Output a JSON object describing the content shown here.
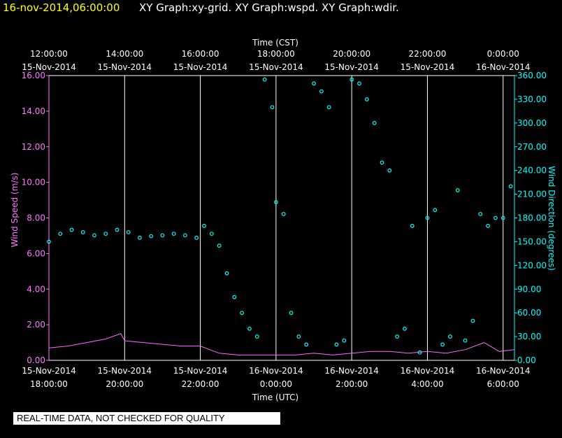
{
  "header": {
    "timestamp": "16-nov-2014,06:00:00",
    "graphs": "XY Graph:xy-grid.  XY Graph:wspd.  XY Graph:wdir.",
    "timestamp_color": "#ffff00",
    "graphs_color": "#ffffff"
  },
  "footer": {
    "qc_notice": "REAL-TIME DATA, NOT CHECKED FOR QUALITY"
  },
  "chart_data": {
    "type": "line+scatter",
    "title": "16-nov-2014,06:00:00",
    "top_axis_title": "Time (CST)",
    "bottom_axis_title": "Time (UTC)",
    "left_axis_title": "Wind Speed (m/s)",
    "right_axis_title": "Wind Direction (degrees)",
    "x_range_utc_hours": [
      18,
      30.3
    ],
    "top_ticks": [
      {
        "hour": 18,
        "time": "12:00:00",
        "date": "15-Nov-2014"
      },
      {
        "hour": 20,
        "time": "14:00:00",
        "date": "15-Nov-2014"
      },
      {
        "hour": 22,
        "time": "16:00:00",
        "date": "15-Nov-2014"
      },
      {
        "hour": 24,
        "time": "18:00:00",
        "date": "15-Nov-2014"
      },
      {
        "hour": 26,
        "time": "20:00:00",
        "date": "15-Nov-2014"
      },
      {
        "hour": 28,
        "time": "22:00:00",
        "date": "15-Nov-2014"
      },
      {
        "hour": 30,
        "time": "0:00:00",
        "date": "16-Nov-2014"
      }
    ],
    "bottom_ticks": [
      {
        "hour": 18,
        "date": "15-Nov-2014",
        "time": "18:00:00"
      },
      {
        "hour": 20,
        "date": "15-Nov-2014",
        "time": "20:00:00"
      },
      {
        "hour": 22,
        "date": "15-Nov-2014",
        "time": "22:00:00"
      },
      {
        "hour": 24,
        "date": "16-Nov-2014",
        "time": "0:00:00"
      },
      {
        "hour": 26,
        "date": "16-Nov-2014",
        "time": "2:00:00"
      },
      {
        "hour": 28,
        "date": "16-Nov-2014",
        "time": "4:00:00"
      },
      {
        "hour": 30,
        "date": "16-Nov-2014",
        "time": "6:00:00"
      }
    ],
    "y_left": {
      "range": [
        0,
        16
      ],
      "ticks": [
        "0.00",
        "2.00",
        "4.00",
        "6.00",
        "8.00",
        "10.00",
        "12.00",
        "14.00",
        "16.00"
      ]
    },
    "y_right": {
      "range": [
        0,
        360
      ],
      "ticks": [
        "0.00",
        "30.00",
        "60.00",
        "90.00",
        "120.00",
        "150.00",
        "180.00",
        "210.00",
        "240.00",
        "270.00",
        "300.00",
        "330.00",
        "360.00"
      ]
    },
    "series": [
      {
        "name": "Wind Speed",
        "axis": "left",
        "style": "line",
        "color": "#ff66ff",
        "x": [
          18.0,
          18.5,
          19.0,
          19.5,
          19.9,
          20.0,
          20.5,
          21.0,
          21.5,
          22.0,
          22.5,
          23.0,
          23.5,
          24.0,
          24.5,
          25.0,
          25.5,
          26.0,
          26.5,
          27.0,
          27.5,
          28.0,
          28.5,
          29.0,
          29.5,
          29.9,
          30.3
        ],
        "values": [
          0.7,
          0.8,
          1.0,
          1.2,
          1.5,
          1.1,
          1.0,
          0.9,
          0.8,
          0.8,
          0.4,
          0.3,
          0.3,
          0.3,
          0.3,
          0.4,
          0.3,
          0.4,
          0.5,
          0.5,
          0.4,
          0.5,
          0.4,
          0.6,
          1.0,
          0.5,
          0.6
        ]
      },
      {
        "name": "Wind Direction",
        "axis": "right",
        "style": "points",
        "color": "#00ffff",
        "x": [
          18.0,
          18.3,
          18.6,
          18.9,
          19.2,
          19.5,
          19.8,
          20.1,
          20.4,
          20.7,
          21.0,
          21.3,
          21.6,
          21.9,
          22.1,
          22.3,
          22.5,
          22.7,
          22.9,
          23.1,
          23.3,
          23.5,
          23.7,
          23.9,
          24.0,
          24.2,
          24.4,
          24.6,
          24.8,
          25.0,
          25.2,
          25.4,
          25.6,
          25.8,
          26.0,
          26.2,
          26.4,
          26.6,
          26.8,
          27.0,
          27.2,
          27.4,
          27.6,
          27.8,
          28.0,
          28.2,
          28.4,
          28.6,
          28.8,
          29.0,
          29.2,
          29.4,
          29.6,
          29.8,
          30.0,
          30.2
        ],
        "values": [
          150,
          160,
          165,
          162,
          158,
          160,
          165,
          162,
          155,
          157,
          158,
          160,
          158,
          155,
          170,
          160,
          145,
          110,
          80,
          60,
          40,
          30,
          355,
          320,
          200,
          185,
          60,
          30,
          20,
          350,
          340,
          320,
          20,
          25,
          355,
          350,
          330,
          300,
          250,
          240,
          30,
          40,
          170,
          10,
          180,
          190,
          20,
          30,
          215,
          25,
          50,
          185,
          170,
          180,
          180,
          220
        ]
      }
    ]
  }
}
